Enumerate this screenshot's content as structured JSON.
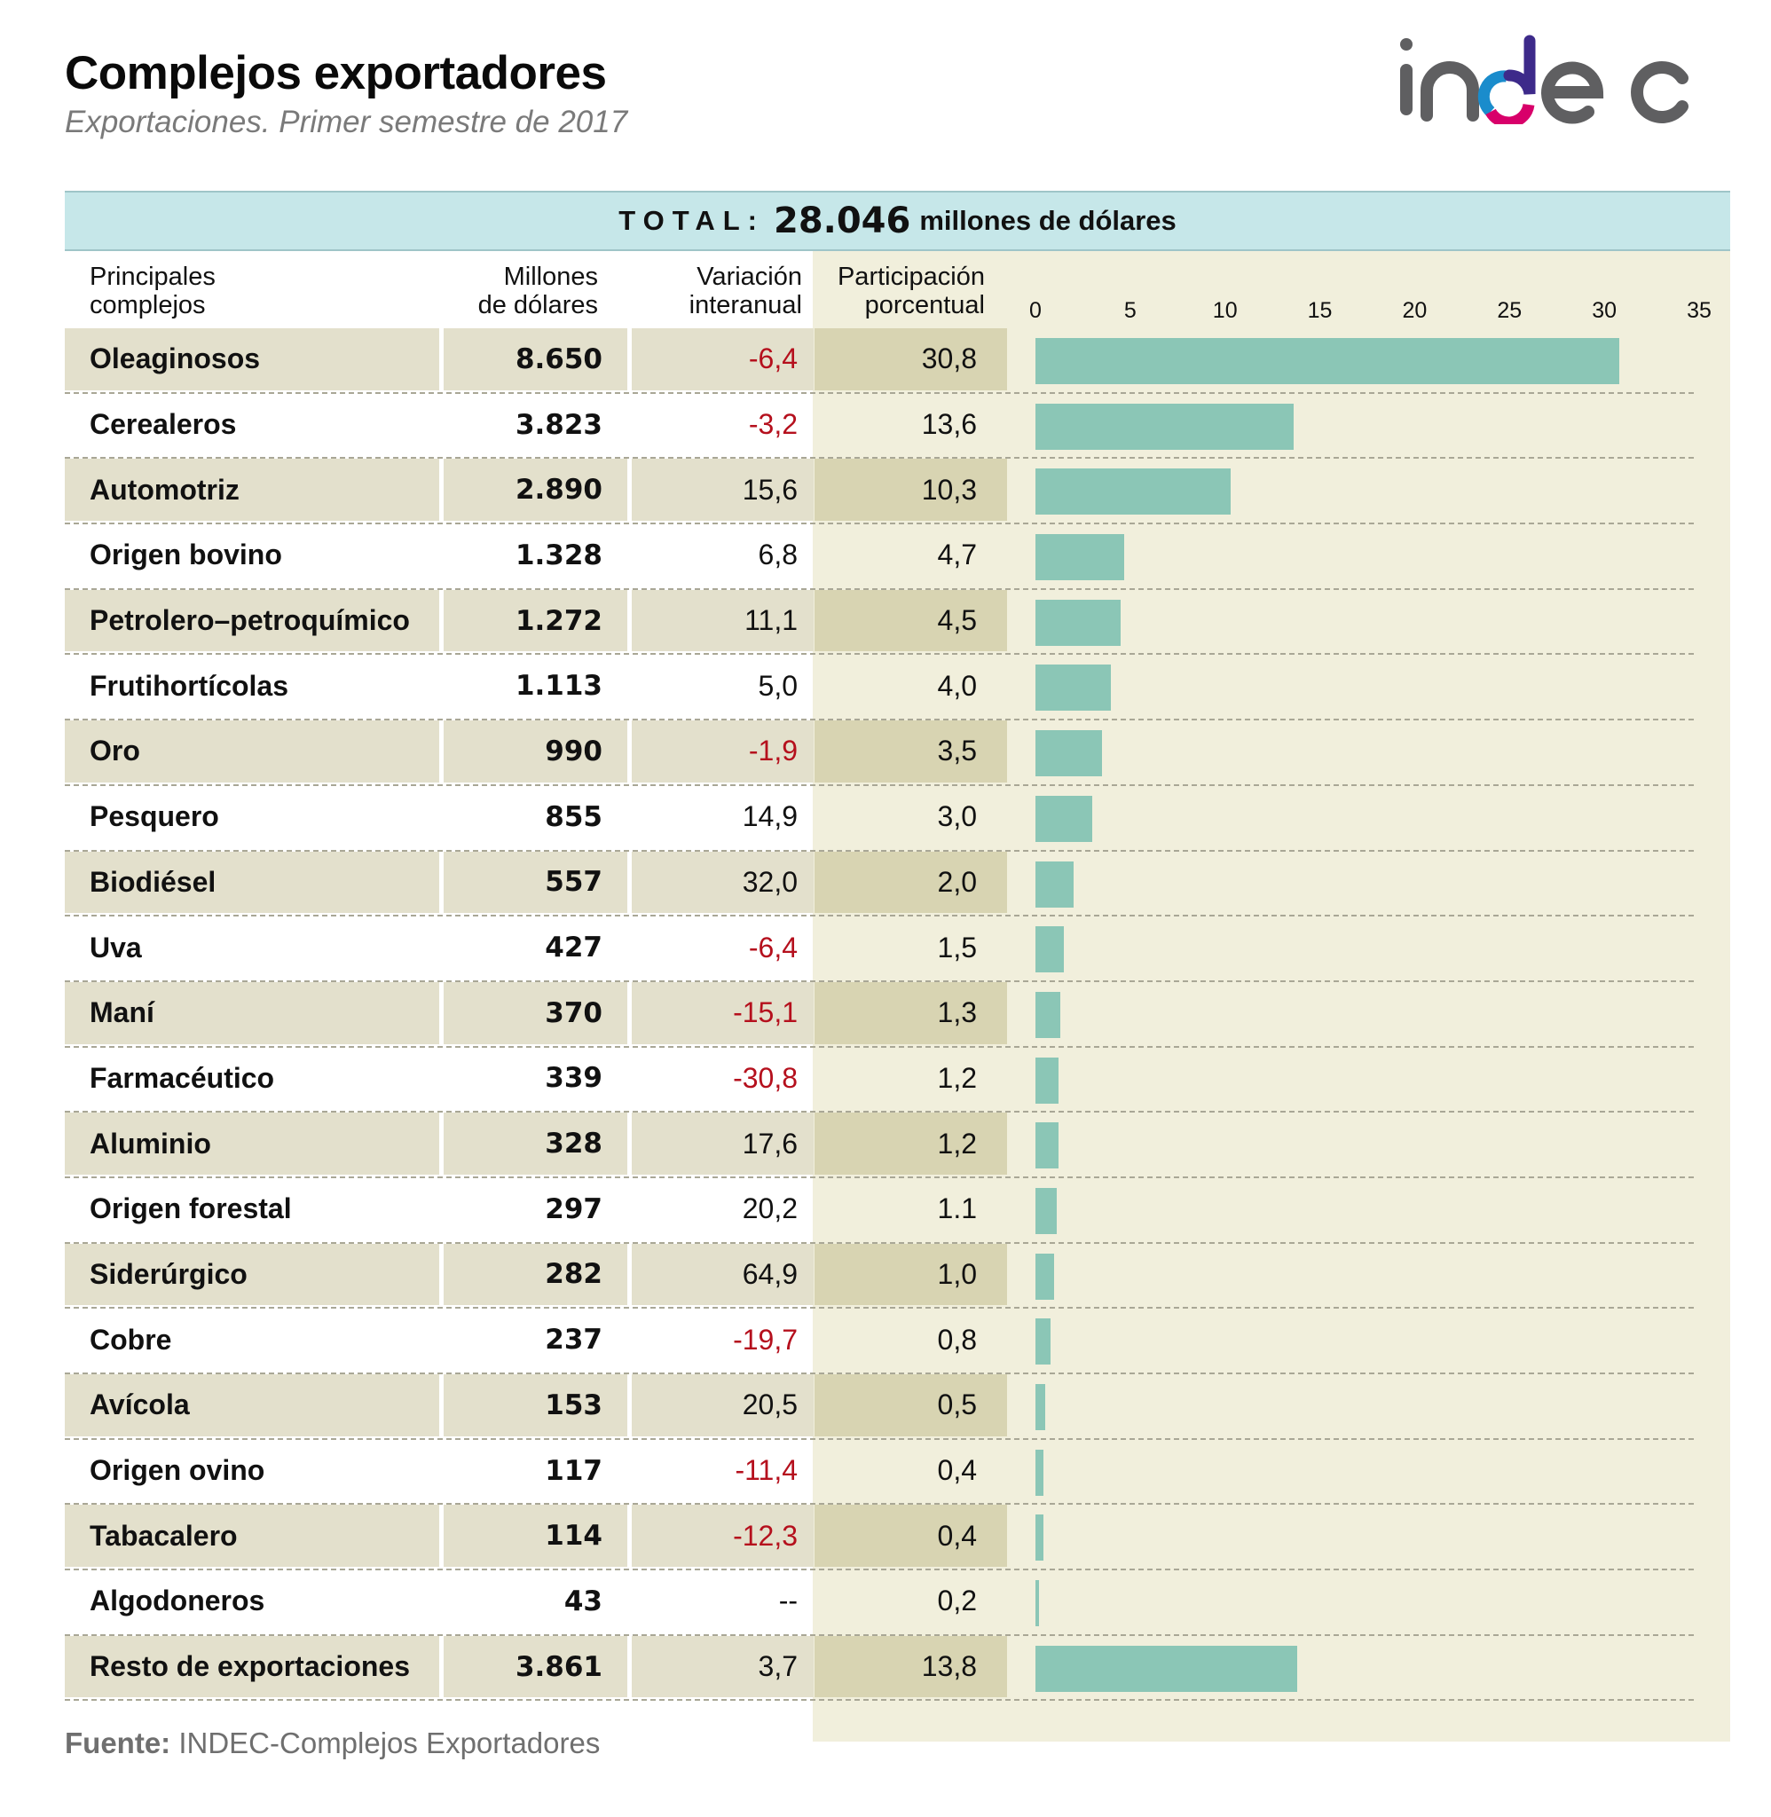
{
  "header": {
    "title": "Complejos exportadores",
    "subtitle": "Exportaciones. Primer semestre de 2017",
    "logo_text": "indec"
  },
  "total": {
    "label": "TOTAL:",
    "value": "28.046",
    "unit": "millones de dólares"
  },
  "columns": {
    "name": [
      "Principales",
      "complejos"
    ],
    "millions": [
      "Millones",
      "de dólares"
    ],
    "variation": [
      "Variación",
      "interanual"
    ],
    "participation": [
      "Participación",
      "porcentual"
    ]
  },
  "colors": {
    "bar": "#8bc6b6",
    "negative": "#b5101d",
    "total_band": "#c6e7e9",
    "panel": "#f1efdc",
    "logo_gray": "#5f5f61",
    "logo_blue": "#1a8ccc",
    "logo_purple": "#3d2a8a",
    "logo_magenta": "#d8006a"
  },
  "footer": {
    "source_label": "Fuente:",
    "source_text": "INDEC-Complejos Exportadores"
  },
  "chart_data": {
    "type": "bar",
    "orientation": "horizontal",
    "title": "Complejos exportadores",
    "subtitle": "Exportaciones. Primer semestre de 2017",
    "xlabel": "Participación porcentual",
    "ylabel": "Principales complejos",
    "xlim": [
      0,
      35
    ],
    "x_ticks": [
      "0",
      "5",
      "10",
      "15",
      "20",
      "25",
      "30",
      "35"
    ],
    "grid": false,
    "legend": "none",
    "categories": [
      "Oleaginosos",
      "Cerealeros",
      "Automotriz",
      "Origen bovino",
      "Petrolero–petroquímico",
      "Frutihortícolas",
      "Oro",
      "Pesquero",
      "Biodiésel",
      "Uva",
      "Maní",
      "Farmacéutico",
      "Aluminio",
      "Origen forestal",
      "Siderúrgico",
      "Cobre",
      "Avícola",
      "Origen ovino",
      "Tabacalero",
      "Algodoneros",
      "Resto de exportaciones"
    ],
    "values": [
      30.8,
      13.6,
      10.3,
      4.7,
      4.5,
      4.0,
      3.5,
      3.0,
      2.0,
      1.5,
      1.3,
      1.2,
      1.2,
      1.1,
      1.0,
      0.8,
      0.5,
      0.4,
      0.4,
      0.2,
      13.8
    ],
    "rows": [
      {
        "name": "Oleaginosos",
        "millions": "8.650",
        "variation": "-6,4",
        "participation": "30,8",
        "negative": true
      },
      {
        "name": "Cerealeros",
        "millions": "3.823",
        "variation": "-3,2",
        "participation": "13,6",
        "negative": true
      },
      {
        "name": "Automotriz",
        "millions": "2.890",
        "variation": "15,6",
        "participation": "10,3",
        "negative": false
      },
      {
        "name": "Origen bovino",
        "millions": "1.328",
        "variation": "6,8",
        "participation": "4,7",
        "negative": false
      },
      {
        "name": "Petrolero–petroquímico",
        "millions": "1.272",
        "variation": "11,1",
        "participation": "4,5",
        "negative": false
      },
      {
        "name": "Frutihortícolas",
        "millions": "1.113",
        "variation": "5,0",
        "participation": "4,0",
        "negative": false
      },
      {
        "name": "Oro",
        "millions": "990",
        "variation": "-1,9",
        "participation": "3,5",
        "negative": true
      },
      {
        "name": "Pesquero",
        "millions": "855",
        "variation": "14,9",
        "participation": "3,0",
        "negative": false
      },
      {
        "name": "Biodiésel",
        "millions": "557",
        "variation": "32,0",
        "participation": "2,0",
        "negative": false
      },
      {
        "name": "Uva",
        "millions": "427",
        "variation": "-6,4",
        "participation": "1,5",
        "negative": true
      },
      {
        "name": "Maní",
        "millions": "370",
        "variation": "-15,1",
        "participation": "1,3",
        "negative": true
      },
      {
        "name": "Farmacéutico",
        "millions": "339",
        "variation": "-30,8",
        "participation": "1,2",
        "negative": true
      },
      {
        "name": "Aluminio",
        "millions": "328",
        "variation": "17,6",
        "participation": "1,2",
        "negative": false
      },
      {
        "name": "Origen forestal",
        "millions": "297",
        "variation": "20,2",
        "participation": "1.1",
        "negative": false
      },
      {
        "name": "Siderúrgico",
        "millions": "282",
        "variation": "64,9",
        "participation": "1,0",
        "negative": false
      },
      {
        "name": "Cobre",
        "millions": "237",
        "variation": "-19,7",
        "participation": "0,8",
        "negative": true
      },
      {
        "name": "Avícola",
        "millions": "153",
        "variation": "20,5",
        "participation": "0,5",
        "negative": false
      },
      {
        "name": "Origen ovino",
        "millions": "117",
        "variation": "-11,4",
        "participation": "0,4",
        "negative": true
      },
      {
        "name": "Tabacalero",
        "millions": "114",
        "variation": "-12,3",
        "participation": "0,4",
        "negative": true
      },
      {
        "name": "Algodoneros",
        "millions": "43",
        "variation": "--",
        "participation": "0,2",
        "negative": false
      },
      {
        "name": "Resto de exportaciones",
        "millions": "3.861",
        "variation": "3,7",
        "participation": "13,8",
        "negative": false
      }
    ]
  }
}
